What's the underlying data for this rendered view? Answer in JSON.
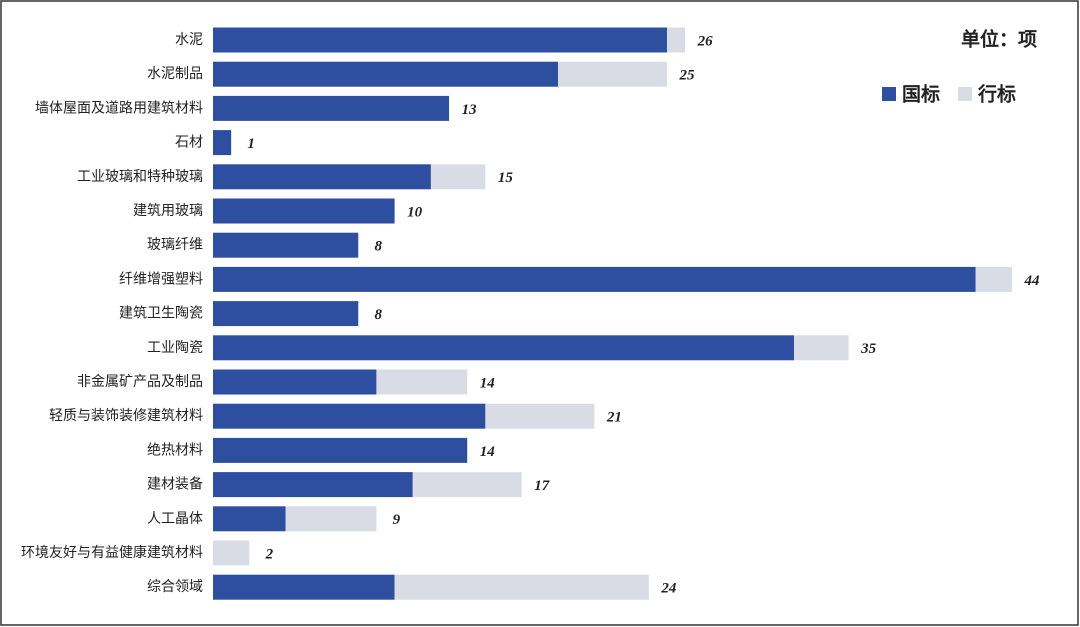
{
  "chart_data": {
    "type": "stacked-bar-horizontal",
    "unit_label": "单位：项",
    "categories": [
      "水泥",
      "水泥制品",
      "墙体屋面及道路用建筑材料",
      "石材",
      "工业玻璃和特种玻璃",
      "建筑用玻璃",
      "玻璃纤维",
      "纤维增强塑料",
      "建筑卫生陶瓷",
      "工业陶瓷",
      "非金属矿产品及制品",
      "轻质与装饰装修建筑材料",
      "绝热材料",
      "建材装备",
      "人工晶体",
      "环境友好与有益健康建筑材料",
      "综合领域"
    ],
    "series": [
      {
        "name": "国标",
        "color": "#2e4f9f",
        "values": [
          25,
          19,
          13,
          1,
          12,
          10,
          8,
          42,
          8,
          32,
          9,
          15,
          14,
          11,
          4,
          0,
          10
        ]
      },
      {
        "name": "行标",
        "color": "#d9dce5",
        "values": [
          1,
          6,
          0,
          0,
          3,
          0,
          0,
          2,
          0,
          3,
          5,
          6,
          0,
          6,
          5,
          2,
          14
        ]
      }
    ],
    "totals": [
      26,
      25,
      13,
      1,
      15,
      10,
      8,
      44,
      8,
      35,
      14,
      21,
      14,
      17,
      9,
      2,
      24
    ],
    "legend": "top-right"
  }
}
